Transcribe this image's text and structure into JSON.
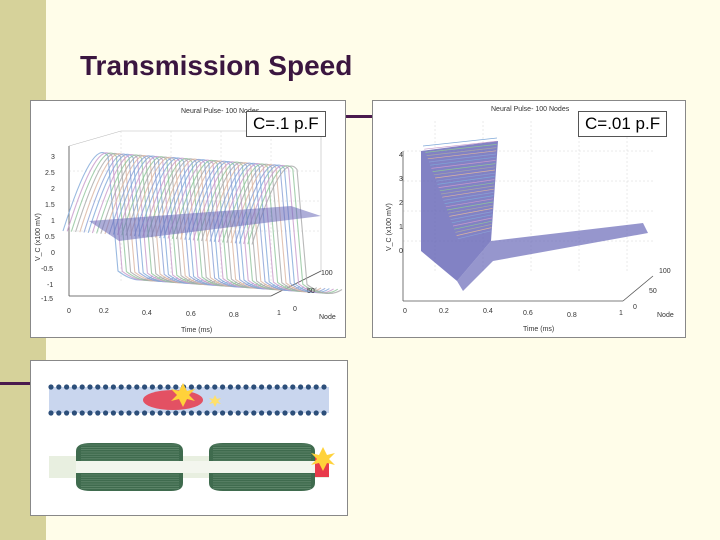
{
  "slide": {
    "title": "Transmission Speed"
  },
  "left_plot": {
    "caption": "C=.1 p.F",
    "plot_title": "Neural Pulse- 100 Nodes",
    "xlabel": "Time (ms)",
    "zlabel": "V_C (x100 mV)",
    "ylabel": "Node",
    "z_ticks": [
      "3",
      "2.5",
      "2",
      "1.5",
      "1",
      "0.5",
      "0",
      "-0.5",
      "-1",
      "-1.5"
    ],
    "x_ticks": [
      "0",
      "0.2",
      "0.4",
      "0.6",
      "0.8",
      "1"
    ],
    "y_ticks": [
      "100",
      "50",
      "0"
    ]
  },
  "right_plot": {
    "caption": "C=.01 p.F",
    "plot_title": "Neural Pulse- 100 Nodes",
    "xlabel": "Time (ms)",
    "zlabel": "V_C (x100 mV)",
    "ylabel": "Node",
    "z_ticks": [
      "4",
      "3",
      "2",
      "1",
      "0"
    ],
    "x_ticks": [
      "0",
      "0.2",
      "0.4",
      "0.6",
      "0.8",
      "1"
    ],
    "y_ticks": [
      "100",
      "50",
      "0"
    ]
  },
  "diagram": {
    "top_label": "",
    "bottom_label": ""
  }
}
